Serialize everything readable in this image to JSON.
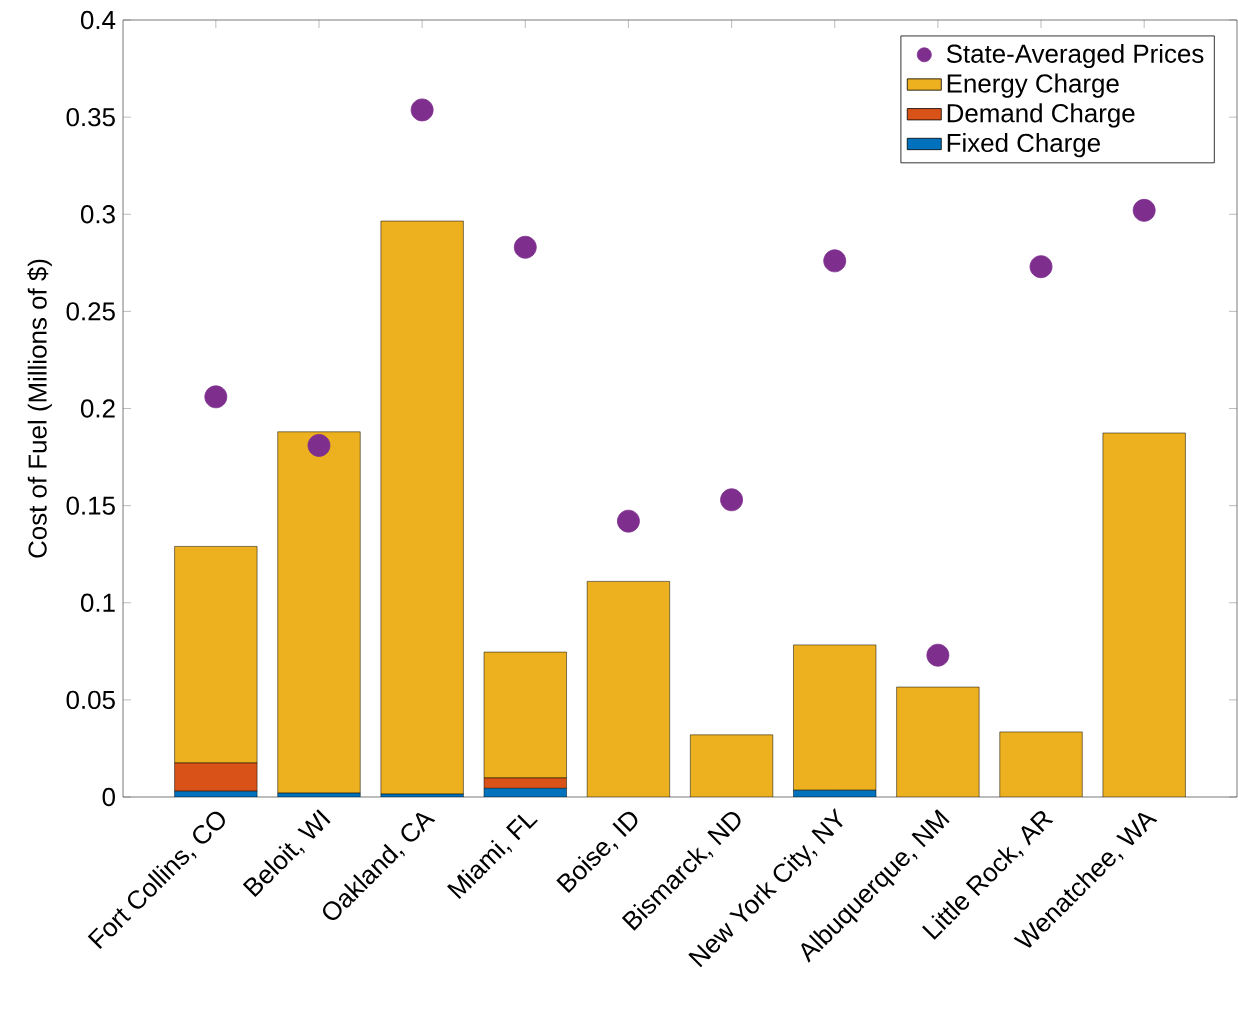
{
  "chart_data": {
    "type": "bar",
    "stacked": true,
    "ylabel": "Cost of Fuel (Millions of $)",
    "categories": [
      "Fort Collins, CO",
      "Beloit, WI",
      "Oakland, CA",
      "Miami, FL",
      "Boise, ID",
      "Bismarck, ND",
      "New York City, NY",
      "Albuquerque, NM",
      "Little Rock, AR",
      "Wenatchee, WA"
    ],
    "series": [
      {
        "name": "Fixed Charge",
        "color": "#0072bd",
        "values": [
          0.003,
          0.002,
          0.0015,
          0.0045,
          0,
          null,
          0.0035,
          0,
          0,
          0
        ]
      },
      {
        "name": "Demand Charge",
        "color": "#d95319",
        "values": [
          0.0145,
          0,
          0,
          0.0053,
          0,
          0,
          0,
          0,
          0,
          0
        ]
      },
      {
        "name": "Energy Charge",
        "color": "#edb120",
        "values": [
          0.1115,
          0.186,
          0.295,
          0.0648,
          0.111,
          0.032,
          0.0748,
          0.0566,
          0.0335,
          0.1874
        ]
      },
      {
        "name": "State-Averaged Prices",
        "type": "scatter",
        "color": "#7e2f8e",
        "marker": "circle",
        "values": [
          0.206,
          0.181,
          0.3537,
          0.283,
          0.142,
          0.153,
          0.276,
          0.073,
          0.273,
          0.302
        ]
      }
    ],
    "ylim": [
      0,
      0.4
    ],
    "yticks": [
      0,
      0.05,
      0.1,
      0.15,
      0.2,
      0.25,
      0.3,
      0.35,
      0.4
    ],
    "legend": "top right"
  }
}
